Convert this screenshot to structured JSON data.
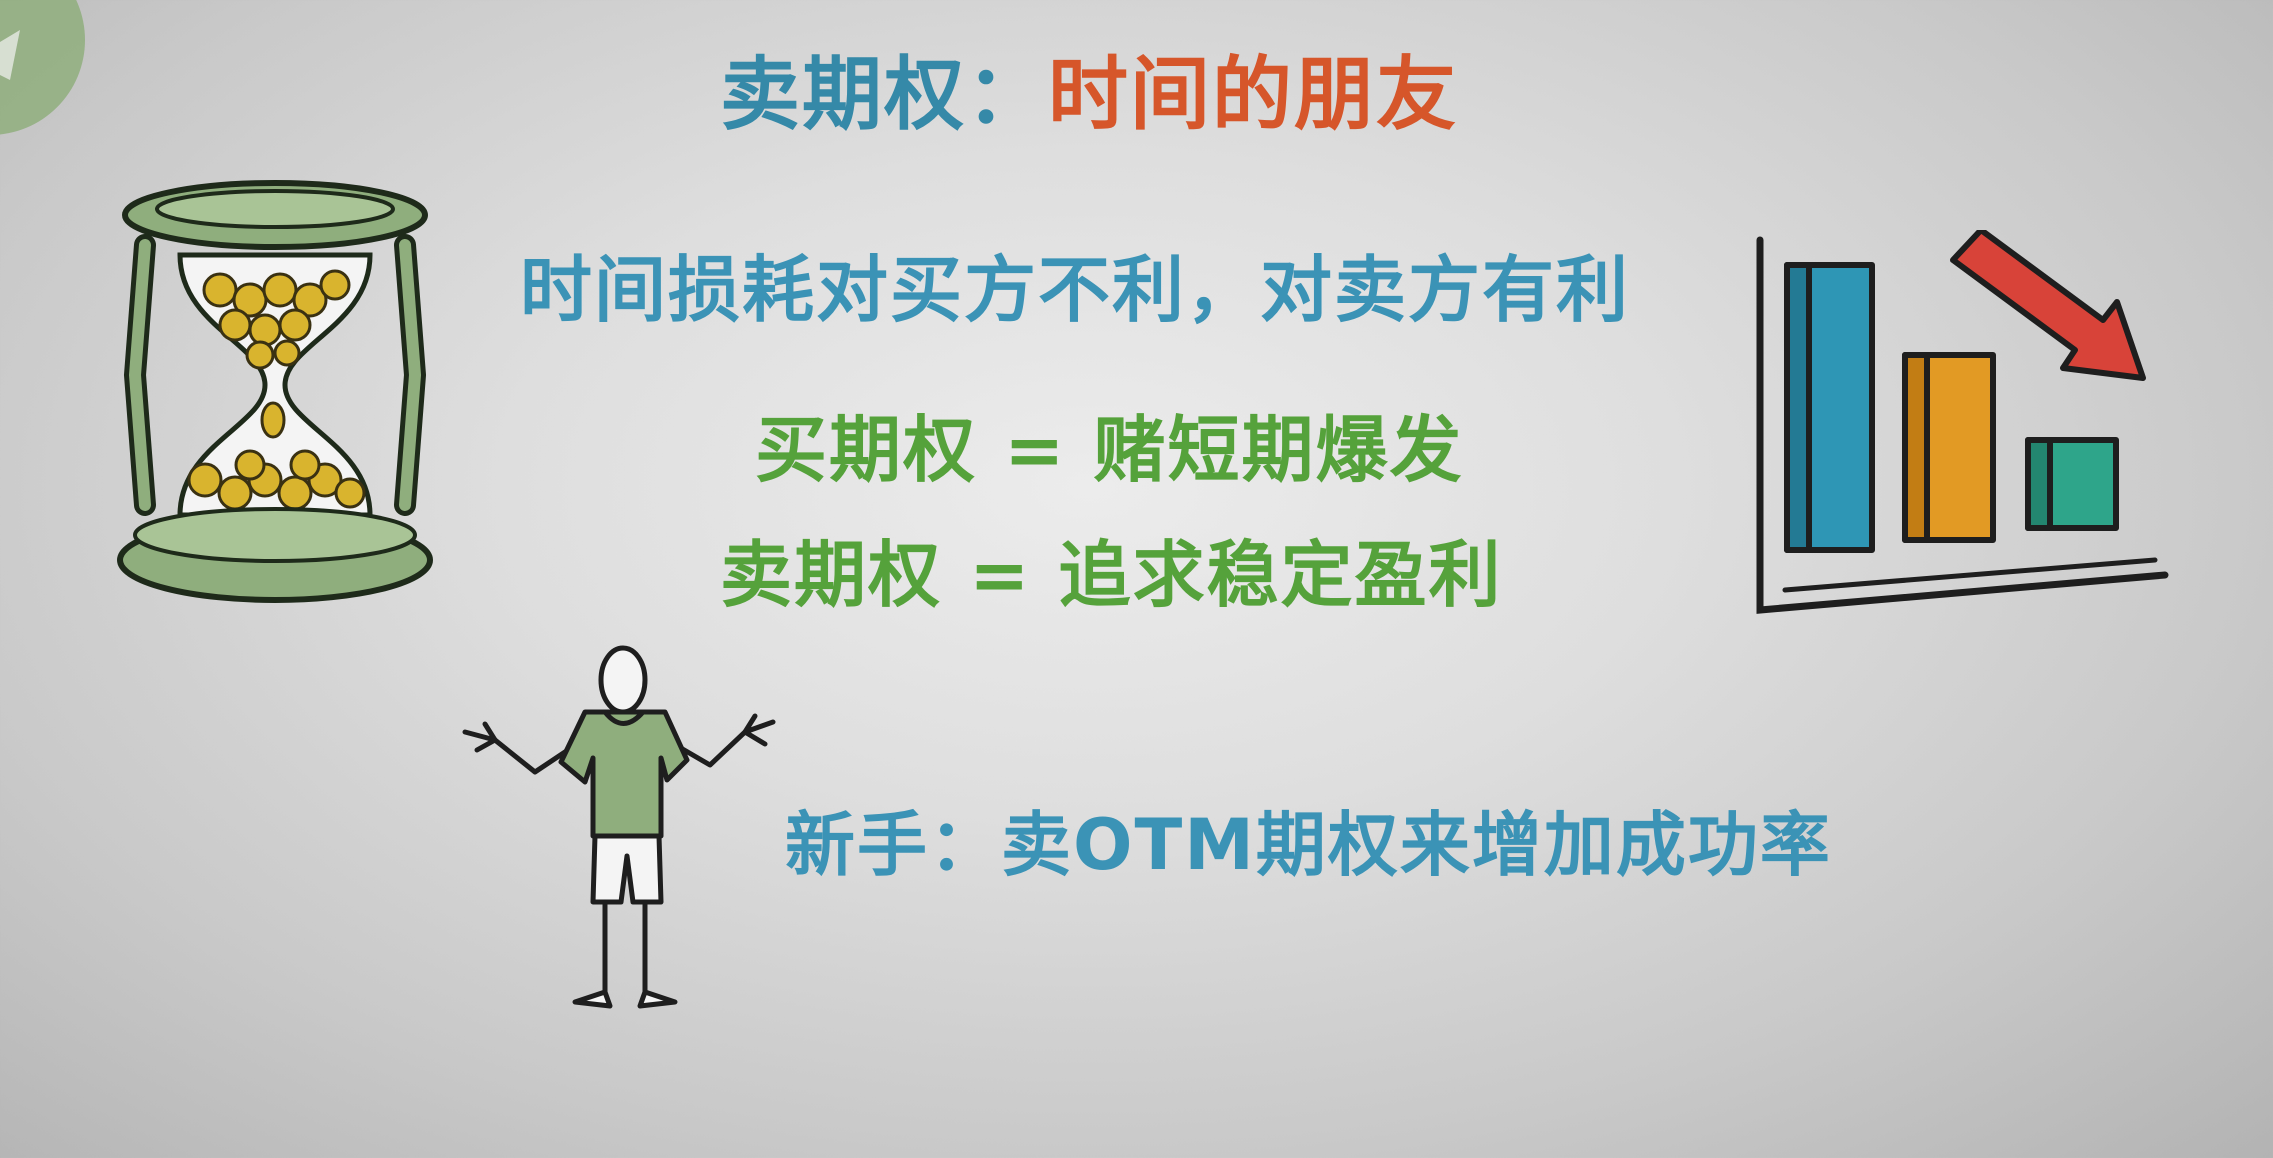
{
  "title": {
    "part1": "卖期权：",
    "part2": "时间的朋友"
  },
  "lines": {
    "time_decay": "时间损耗对买方不利，对卖方有利",
    "buy_option": "买期权 = 赌短期爆发",
    "sell_option": "卖期权 = 追求稳定盈利",
    "beginner": "新手：卖OTM期权来增加成功率"
  },
  "colors": {
    "title_blue": "#3589a8",
    "title_orange": "#d6562a",
    "text_blue": "#3b93b6",
    "text_green": "#55a23b",
    "illustration_green": "#8fae7d",
    "bar_blue": "#2e96b5",
    "bar_orange": "#e29a24",
    "bar_teal": "#2ea58a",
    "arrow_red": "#d84339",
    "coin_gold": "#d9b42e"
  },
  "icons": {
    "logo": "corner-logo-icon",
    "hourglass": "hourglass-icon",
    "chart": "bar-chart-icon",
    "person": "shrugging-person-icon"
  }
}
